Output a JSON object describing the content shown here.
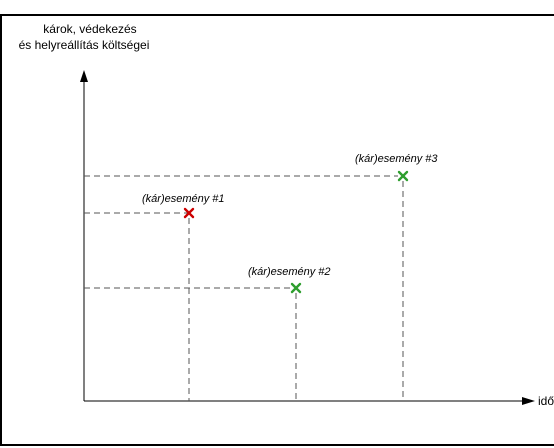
{
  "axes": {
    "y_label_line1": "károk, védekezés",
    "y_label_line2": "és helyreállítás költségei",
    "x_label": "idő"
  },
  "events": [
    {
      "label": "(kár)esemény #1",
      "marker": "x-mark-icon",
      "color": "#cc0000"
    },
    {
      "label": "(kár)esemény #2",
      "marker": "x-mark-icon",
      "color": "#2e9e2e"
    },
    {
      "label": "(kár)esemény #3",
      "marker": "x-mark-icon",
      "color": "#2e9e2e"
    }
  ],
  "colors": {
    "axis": "#000000",
    "guide": "#555555"
  }
}
